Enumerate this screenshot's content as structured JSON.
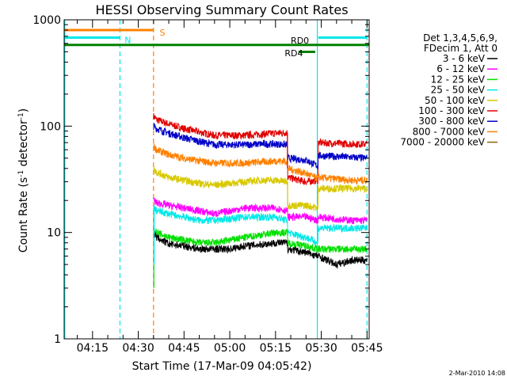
{
  "chart_data": {
    "type": "line",
    "title": "HESSI Observing Summary Count Rates",
    "xlabel": "Start Time (17-Mar-09 04:05:42)",
    "ylabel_main": "Count Rate (s",
    "ylabel_sup1": "-1",
    "ylabel_mid": " detector",
    "ylabel_sup2": "-1",
    "ylabel_end": ")",
    "xlim_min": [
      5.7,
      105.7
    ],
    "ylim": [
      1,
      1000
    ],
    "yscale": "log",
    "x_ticks": [
      {
        "label": "04:15",
        "min": 15
      },
      {
        "label": "04:30",
        "min": 30
      },
      {
        "label": "04:45",
        "min": 45
      },
      {
        "label": "05:00",
        "min": 60
      },
      {
        "label": "05:15",
        "min": 75
      },
      {
        "label": "05:30",
        "min": 90
      },
      {
        "label": "05:45",
        "min": 105
      }
    ],
    "y_ticks": [
      {
        "label": "1",
        "value": 1
      },
      {
        "label": "10",
        "value": 10
      },
      {
        "label": "100",
        "value": 100
      },
      {
        "label": "1000",
        "value": 1000
      }
    ],
    "legend": {
      "header1": "Det 1,3,4,5,6,9,",
      "header2": "FDecim 1, Att 0",
      "entries": [
        {
          "label": "3 - 6 keV",
          "color": "#000000"
        },
        {
          "label": "6 - 12 keV",
          "color": "#ff00ff"
        },
        {
          "label": "12 - 25 keV",
          "color": "#00e000"
        },
        {
          "label": "25 - 50 keV",
          "color": "#00e8e8"
        },
        {
          "label": "50 - 100 keV",
          "color": "#d8c800"
        },
        {
          "label": "100 - 300 keV",
          "color": "#e00000"
        },
        {
          "label": "300 - 800 keV",
          "color": "#0000c8"
        },
        {
          "label": "800 - 7000 keV",
          "color": "#ff8000"
        },
        {
          "label": "7000 - 20000 keV",
          "color": "#8b6508"
        }
      ]
    },
    "series": [
      {
        "name": "100 - 300 keV",
        "color": "#e00000",
        "x": [
          35,
          36,
          40,
          45,
          50,
          55,
          60,
          65,
          70,
          75,
          78.9,
          79,
          85,
          88.9,
          89,
          100,
          105
        ],
        "y": [
          125,
          115,
          105,
          95,
          88,
          82,
          82,
          82,
          84,
          86,
          87,
          33,
          30,
          31,
          70,
          68,
          68
        ]
      },
      {
        "name": "300 - 800 keV",
        "color": "#0000c8",
        "x": [
          35,
          36,
          40,
          45,
          50,
          55,
          60,
          65,
          70,
          75,
          78.9,
          79,
          85,
          88.9,
          89,
          100,
          105
        ],
        "y": [
          100,
          95,
          86,
          78,
          72,
          67,
          67,
          67,
          68,
          68,
          67,
          50,
          48,
          42,
          53,
          51,
          50
        ]
      },
      {
        "name": "800 - 7000 keV",
        "color": "#ff8000",
        "x": [
          35,
          36,
          40,
          45,
          50,
          55,
          60,
          65,
          70,
          75,
          78.9,
          79,
          85,
          88.9,
          89,
          100,
          105
        ],
        "y": [
          65,
          60,
          54,
          50,
          47,
          45,
          45,
          45,
          46,
          47,
          47,
          40,
          36,
          32,
          33,
          31,
          31
        ]
      },
      {
        "name": "50 - 100 keV",
        "color": "#d8c800",
        "x": [
          35,
          36,
          40,
          45,
          50,
          55,
          60,
          65,
          70,
          75,
          78.9,
          79,
          85,
          88.9,
          89,
          100,
          105
        ],
        "y": [
          40,
          37,
          33,
          31,
          29,
          28,
          29,
          30,
          31,
          31,
          30,
          18,
          18,
          17,
          26,
          26,
          26
        ]
      },
      {
        "name": "6 - 12 keV",
        "color": "#ff00ff",
        "x": [
          35,
          36,
          40,
          45,
          50,
          55,
          60,
          65,
          70,
          75,
          78.9,
          79,
          85,
          88.9,
          89,
          100,
          105
        ],
        "y": [
          20,
          19,
          18,
          17,
          16,
          15,
          16,
          17,
          17,
          17,
          16,
          14,
          14,
          13,
          14,
          13,
          13
        ]
      },
      {
        "name": "25 - 50 keV",
        "color": "#00e8e8",
        "x": [
          35,
          36,
          40,
          45,
          50,
          55,
          60,
          65,
          70,
          75,
          78.9,
          79,
          85,
          88.9,
          89,
          100,
          105
        ],
        "y": [
          17,
          16,
          15,
          14,
          13,
          13,
          13.5,
          14,
          14,
          14,
          13,
          10,
          9,
          8,
          11,
          11,
          11
        ]
      },
      {
        "name": "12 - 25 keV",
        "color": "#00e000",
        "x": [
          35,
          36,
          40,
          45,
          50,
          55,
          60,
          65,
          70,
          75,
          78.9,
          79,
          85,
          88.9,
          89,
          100,
          105
        ],
        "y": [
          11,
          10,
          9,
          8.5,
          8,
          8,
          8.5,
          9,
          9.5,
          10,
          10,
          8,
          7.5,
          7,
          7,
          7,
          7
        ]
      },
      {
        "name": "3 - 6 keV",
        "color": "#000000",
        "x": [
          35,
          36,
          40,
          45,
          50,
          55,
          60,
          65,
          70,
          75,
          78.9,
          79,
          85,
          88.9,
          89,
          95,
          100,
          105
        ],
        "y": [
          10,
          9,
          7.8,
          7.5,
          7,
          7,
          7,
          7.5,
          7.7,
          8,
          8,
          7,
          6.5,
          6,
          6,
          5,
          5.5,
          5.5
        ]
      }
    ],
    "spikes": [
      {
        "color": "#00e000",
        "min": 35.1,
        "y": [
          3,
          15
        ]
      },
      {
        "color": "#00e8e8",
        "min": 35.2,
        "y": [
          5,
          18
        ]
      },
      {
        "color": "#d8c800",
        "min": 78.95,
        "y": [
          18,
          30
        ]
      },
      {
        "color": "#e00000",
        "min": 78.9,
        "y": [
          40,
          87
        ]
      }
    ],
    "flags": [
      {
        "label": "S",
        "color": "#ff8000",
        "x": [
          5.7,
          35
        ],
        "y": 800,
        "label_x": 37
      },
      {
        "label": "N",
        "color": "#00e8e8",
        "x": [
          5.7,
          24
        ],
        "y": 680,
        "label_x": 25.5
      },
      {
        "label": "N",
        "color": "#00e8e8",
        "x": [
          89,
          105
        ],
        "y": 680,
        "label_x": null
      },
      {
        "label": "RD0",
        "color": "#008000",
        "x": [
          5.7,
          105.7
        ],
        "y": 580,
        "label_x": 80,
        "label_y": 630
      },
      {
        "label": "RD4",
        "color": "#008000",
        "x": [
          82.5,
          88
        ],
        "y": 500,
        "label_x": 78,
        "label_y": 480
      }
    ],
    "vlines": [
      {
        "min": 5.9,
        "color": "#00e8e8",
        "dash": false
      },
      {
        "min": 24,
        "color": "#00e8e8",
        "dash": true
      },
      {
        "min": 35,
        "color": "#ff8000",
        "dash": true
      },
      {
        "min": 88.7,
        "color": "#00e8e8",
        "dash": false
      },
      {
        "min": 105,
        "color": "#00e8e8",
        "dash": true
      }
    ]
  },
  "stamp": "2-Mar-2010 14:08"
}
